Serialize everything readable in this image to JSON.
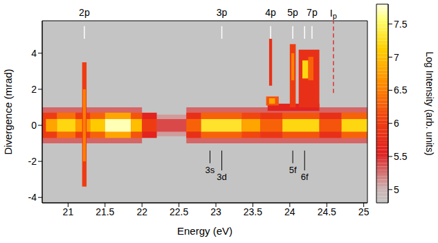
{
  "chart_data": {
    "type": "heatmap",
    "xlabel": "Energy (eV)",
    "ylabel": "Divergence (mrad)",
    "xlim": [
      20.65,
      25.05
    ],
    "xticks": [
      21,
      21.5,
      22,
      22.5,
      23,
      23.5,
      24,
      24.5,
      25
    ],
    "ylim": [
      -4.3,
      5.8
    ],
    "yticks": [
      -4,
      -2,
      0,
      2,
      4
    ],
    "colorbar": {
      "label": "Log Intensity (arb. units)",
      "range": [
        4.8,
        7.8
      ],
      "ticks": [
        5,
        5.5,
        6,
        6.5,
        7,
        7.5
      ]
    },
    "background": 4.8,
    "cells": [
      {
        "x": [
          20.65,
          22.0
        ],
        "y": [
          -1.0,
          1.0
        ],
        "value": 5.3
      },
      {
        "x": [
          22.0,
          22.6
        ],
        "y": [
          -0.6,
          0.6
        ],
        "value": 5.1
      },
      {
        "x": [
          22.6,
          25.05
        ],
        "y": [
          -1.0,
          1.0
        ],
        "value": 5.3
      },
      {
        "x": [
          20.65,
          20.85
        ],
        "y": [
          -0.7,
          0.7
        ],
        "value": 6.0
      },
      {
        "x": [
          20.85,
          21.1
        ],
        "y": [
          -0.7,
          0.7
        ],
        "value": 6.4
      },
      {
        "x": [
          21.1,
          21.3
        ],
        "y": [
          -0.7,
          0.7
        ],
        "value": 6.0
      },
      {
        "x": [
          21.3,
          21.5
        ],
        "y": [
          -0.7,
          0.7
        ],
        "value": 6.3
      },
      {
        "x": [
          21.5,
          21.85
        ],
        "y": [
          -0.7,
          0.7
        ],
        "value": 6.8
      },
      {
        "x": [
          21.85,
          22.0
        ],
        "y": [
          -0.7,
          0.7
        ],
        "value": 6.2
      },
      {
        "x": [
          22.0,
          22.2
        ],
        "y": [
          -0.7,
          0.7
        ],
        "value": 5.6
      },
      {
        "x": [
          22.6,
          22.8
        ],
        "y": [
          -0.7,
          0.7
        ],
        "value": 5.8
      },
      {
        "x": [
          22.8,
          23.35
        ],
        "y": [
          -0.7,
          0.7
        ],
        "value": 6.3
      },
      {
        "x": [
          23.35,
          23.6
        ],
        "y": [
          -0.7,
          0.7
        ],
        "value": 6.1
      },
      {
        "x": [
          23.6,
          23.9
        ],
        "y": [
          -0.7,
          0.7
        ],
        "value": 5.9
      },
      {
        "x": [
          23.9,
          24.4
        ],
        "y": [
          -0.7,
          0.7
        ],
        "value": 6.2
      },
      {
        "x": [
          24.4,
          24.7
        ],
        "y": [
          -0.7,
          0.7
        ],
        "value": 5.8
      },
      {
        "x": [
          24.7,
          25.05
        ],
        "y": [
          -0.7,
          0.7
        ],
        "value": 6.3
      },
      {
        "x": [
          20.7,
          20.85
        ],
        "y": [
          -0.35,
          0.35
        ],
        "value": 6.8
      },
      {
        "x": [
          20.85,
          21.1
        ],
        "y": [
          -0.35,
          0.35
        ],
        "value": 7.2
      },
      {
        "x": [
          21.1,
          21.3
        ],
        "y": [
          -0.35,
          0.35
        ],
        "value": 6.7
      },
      {
        "x": [
          21.3,
          21.5
        ],
        "y": [
          -0.35,
          0.35
        ],
        "value": 7.1
      },
      {
        "x": [
          21.5,
          21.85
        ],
        "y": [
          -0.35,
          0.35
        ],
        "value": 7.7
      },
      {
        "x": [
          21.85,
          22.0
        ],
        "y": [
          -0.35,
          0.35
        ],
        "value": 7.0
      },
      {
        "x": [
          22.0,
          22.2
        ],
        "y": [
          -0.35,
          0.35
        ],
        "value": 6.0
      },
      {
        "x": [
          22.2,
          22.6
        ],
        "y": [
          -0.35,
          0.35
        ],
        "value": 5.4
      },
      {
        "x": [
          22.6,
          22.8
        ],
        "y": [
          -0.35,
          0.35
        ],
        "value": 6.3
      },
      {
        "x": [
          22.8,
          23.35
        ],
        "y": [
          -0.35,
          0.35
        ],
        "value": 7.3
      },
      {
        "x": [
          23.35,
          23.6
        ],
        "y": [
          -0.35,
          0.35
        ],
        "value": 6.8
      },
      {
        "x": [
          23.6,
          23.9
        ],
        "y": [
          -0.35,
          0.35
        ],
        "value": 6.3
      },
      {
        "x": [
          23.9,
          24.4
        ],
        "y": [
          -0.35,
          0.35
        ],
        "value": 7.2
      },
      {
        "x": [
          24.4,
          24.7
        ],
        "y": [
          -0.35,
          0.35
        ],
        "value": 6.2
      },
      {
        "x": [
          24.7,
          25.05
        ],
        "y": [
          -0.35,
          0.35
        ],
        "value": 7.2
      },
      {
        "x": [
          21.19,
          21.25
        ],
        "y": [
          -3.4,
          3.5
        ],
        "value": 6.0
      },
      {
        "x": [
          21.2,
          21.24
        ],
        "y": [
          -2.0,
          2.0
        ],
        "value": 6.5
      },
      {
        "x": [
          23.7,
          24.4
        ],
        "y": [
          0.8,
          1.2
        ],
        "value": 5.6
      },
      {
        "x": [
          23.72,
          23.76
        ],
        "y": [
          2.2,
          4.8
        ],
        "value": 5.8
      },
      {
        "x": [
          23.68,
          23.85
        ],
        "y": [
          1.1,
          1.6
        ],
        "value": 6.2
      },
      {
        "x": [
          23.72,
          23.8
        ],
        "y": [
          1.2,
          1.5
        ],
        "value": 6.8
      },
      {
        "x": [
          24.0,
          24.08
        ],
        "y": [
          1.0,
          4.5
        ],
        "value": 6.0
      },
      {
        "x": [
          24.02,
          24.06
        ],
        "y": [
          2.5,
          4.0
        ],
        "value": 6.5
      },
      {
        "x": [
          24.12,
          24.4
        ],
        "y": [
          1.0,
          4.2
        ],
        "value": 5.8
      },
      {
        "x": [
          24.17,
          24.25
        ],
        "y": [
          2.6,
          3.6
        ],
        "value": 7.2
      },
      {
        "x": [
          24.25,
          24.32
        ],
        "y": [
          2.5,
          3.8
        ],
        "value": 6.3
      }
    ],
    "top_markers": [
      {
        "x": 21.22,
        "y": [
          4.8,
          5.5
        ],
        "label": "2p"
      },
      {
        "x": 23.08,
        "y": [
          4.8,
          5.5
        ],
        "label": "3p"
      },
      {
        "x": 23.74,
        "y": [
          4.8,
          5.5
        ],
        "label": "4p"
      },
      {
        "x": 24.04,
        "y": [
          4.8,
          5.5
        ],
        "label": "5p"
      },
      {
        "x": 24.2,
        "y": [
          4.8,
          5.5
        ],
        "label": null
      },
      {
        "x": 24.3,
        "y": [
          4.8,
          5.5
        ],
        "label": "7p"
      }
    ],
    "ionization": {
      "x": 24.59,
      "y": [
        1.8,
        5.8
      ],
      "label": "Ip"
    },
    "bottom_markers": [
      {
        "x": 22.92,
        "y": [
          -1.4,
          -2.1
        ],
        "label": "3s"
      },
      {
        "x": 23.08,
        "y": [
          -1.4,
          -2.5
        ],
        "label": "3d"
      },
      {
        "x": 24.04,
        "y": [
          -1.4,
          -2.1
        ],
        "label": "5f"
      },
      {
        "x": 24.2,
        "y": [
          -1.4,
          -2.5
        ],
        "label": "6f"
      }
    ]
  }
}
